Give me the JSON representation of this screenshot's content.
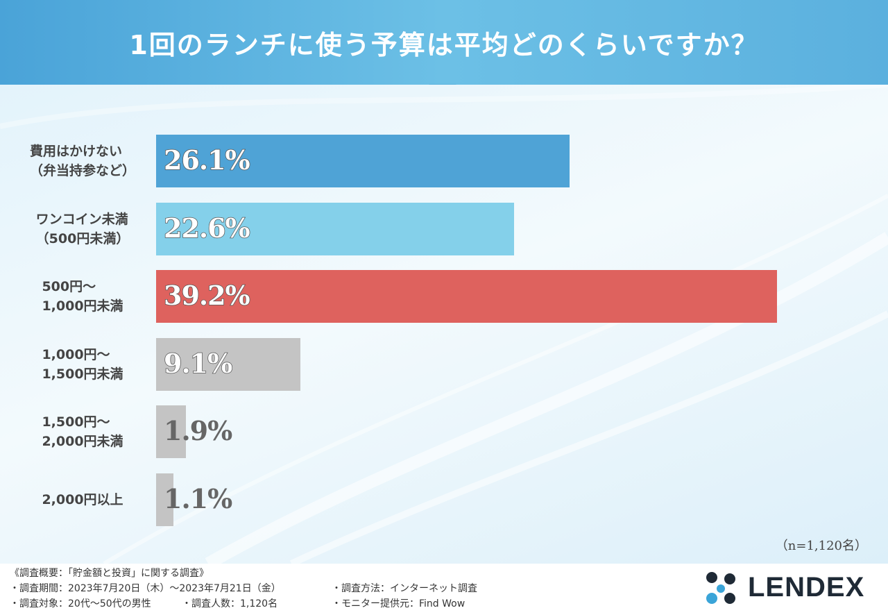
{
  "header": {
    "title": "1回のランチに使う予算は平均どのくらいですか？"
  },
  "chart_data": {
    "type": "bar",
    "orientation": "horizontal",
    "title": "1回のランチに使う予算は平均どのくらいですか？",
    "categories": [
      "費用はかけない\n（弁当持参など）",
      "ワンコイン未満\n（500円未満）",
      "500円～\n1,000円未満",
      "1,000円～\n1,500円未満",
      "1,500円～\n2,000円未満",
      "2,000円以上"
    ],
    "values": [
      26.1,
      22.6,
      39.2,
      9.1,
      1.9,
      1.1
    ],
    "value_labels": [
      "26.1%",
      "22.6%",
      "39.2%",
      "9.1%",
      "1.9%",
      "1.1%"
    ],
    "colors": [
      "#4fa3d6",
      "#84d0ea",
      "#de625e",
      "#c4c4c4",
      "#c4c4c4",
      "#c4c4c4"
    ],
    "xlim": [
      0,
      40
    ],
    "grid": false,
    "legend": "none",
    "n_label": "（n=1,120名）"
  },
  "footer": {
    "line1": "《調査概要：「貯金額と投資」に関する調査》",
    "line2a": "・調査期間：2023年7月20日（木）～2023年7月21日（金）",
    "line2b": "・調査方法：インターネット調査",
    "line3a": "・調査対象：20代～50代の男性",
    "line3b": "・調査人数：1,120名",
    "line3c": "・モニター提供元：Find Wow"
  },
  "logo": {
    "text": "LENDEX",
    "icon": "lendex-logo-icon"
  }
}
